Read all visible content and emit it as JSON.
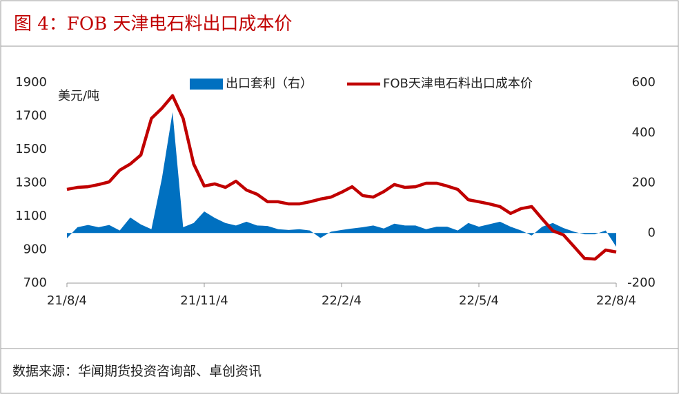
{
  "header": {
    "title": "图 4：FOB 天津电石料出口成本价"
  },
  "chart_data": {
    "type": "combo",
    "y_unit_label": "美元/吨",
    "categories": [
      "21/8/4",
      null,
      null,
      null,
      null,
      null,
      null,
      null,
      null,
      null,
      null,
      null,
      null,
      "21/11/4",
      null,
      null,
      null,
      null,
      null,
      null,
      null,
      null,
      null,
      null,
      null,
      null,
      "22/2/4",
      null,
      null,
      null,
      null,
      null,
      null,
      null,
      null,
      null,
      null,
      null,
      null,
      "22/5/4",
      null,
      null,
      null,
      null,
      null,
      null,
      null,
      null,
      null,
      null,
      null,
      null,
      "22/8/4"
    ],
    "series": [
      {
        "name": "出口套利（右）",
        "kind": "area",
        "axis": "y2",
        "color": "#0070c0",
        "values": [
          -21,
          23,
          32,
          23,
          32,
          10,
          62,
          34,
          15,
          220,
          482,
          23,
          40,
          86,
          60,
          40,
          30,
          45,
          30,
          28,
          15,
          12,
          15,
          10,
          -20,
          5,
          12,
          18,
          23,
          30,
          18,
          37,
          30,
          30,
          15,
          25,
          25,
          10,
          40,
          25,
          35,
          45,
          25,
          10,
          -10,
          25,
          40,
          20,
          5,
          -5,
          -5,
          10,
          -55
        ]
      },
      {
        "name": "FOB天津电石料出口成本价",
        "kind": "line",
        "color": "#c00000",
        "values": [
          1261,
          1273,
          1277,
          1290,
          1306,
          1376,
          1413,
          1467,
          1686,
          1747,
          1822,
          1686,
          1413,
          1281,
          1294,
          1273,
          1310,
          1257,
          1232,
          1187,
          1187,
          1174,
          1174,
          1187,
          1203,
          1215,
          1244,
          1277,
          1224,
          1215,
          1248,
          1290,
          1273,
          1277,
          1298,
          1298,
          1281,
          1261,
          1199,
          1187,
          1174,
          1158,
          1117,
          1146,
          1158,
          1084,
          1013,
          989,
          919,
          848,
          844,
          898,
          886
        ]
      }
    ],
    "ylim": [
      700,
      1900
    ],
    "yticks": [
      700,
      900,
      1100,
      1300,
      1500,
      1700,
      1900
    ],
    "y2lim": [
      -200,
      600
    ],
    "y2ticks": [
      -200,
      0,
      200,
      400,
      600
    ],
    "grid": false,
    "legend": "top"
  },
  "footer": {
    "source": "数据来源：华闻期货投资咨询部、卓创资讯"
  }
}
